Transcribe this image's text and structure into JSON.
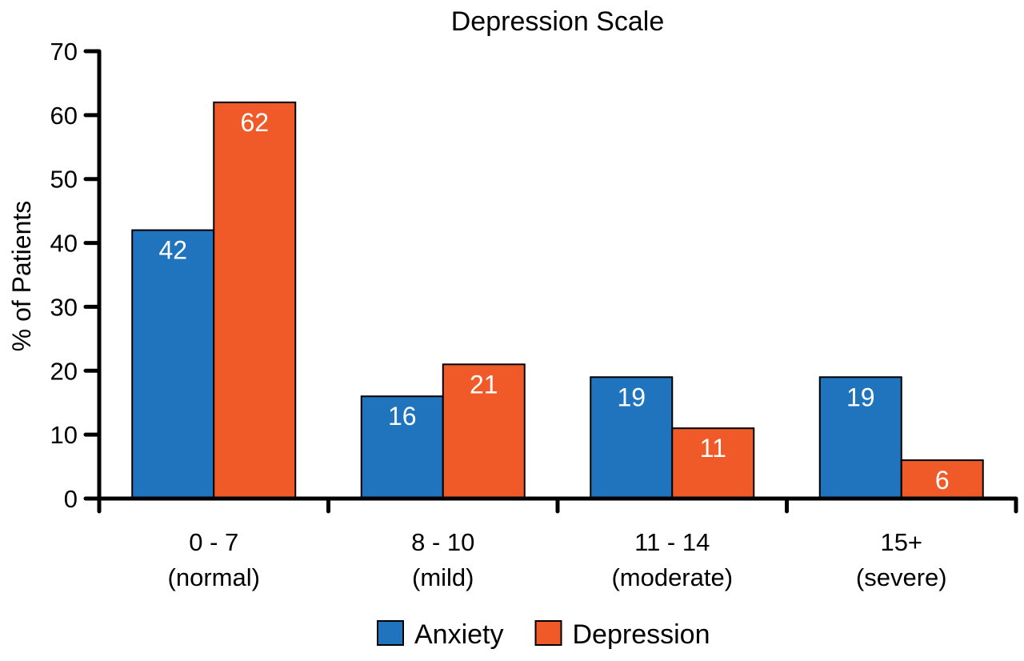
{
  "chart_data": {
    "type": "bar",
    "title": "Depression Scale",
    "xlabel": "",
    "ylabel": "% of Patients",
    "ylim": [
      0,
      70
    ],
    "yticks": [
      0,
      10,
      20,
      30,
      40,
      50,
      60,
      70
    ],
    "grid": false,
    "legend_placement": "bottom",
    "categories": [
      {
        "line1": "0 - 7",
        "line2": "(normal)"
      },
      {
        "line1": "8 - 10",
        "line2": "(mild)"
      },
      {
        "line1": "11 - 14",
        "line2": "(moderate)"
      },
      {
        "line1": "15+",
        "line2": "(severe)"
      }
    ],
    "series": [
      {
        "name": "Anxiety",
        "color": "#1f74bd",
        "values": [
          42,
          16,
          19,
          19
        ]
      },
      {
        "name": "Depression",
        "color": "#f05a28",
        "values": [
          62,
          21,
          11,
          6
        ]
      }
    ]
  }
}
